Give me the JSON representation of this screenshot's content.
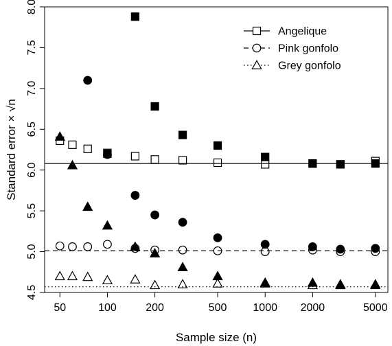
{
  "chart_data": {
    "type": "scatter",
    "xscale": "log",
    "xlabel": "Sample size (n)",
    "ylabel": "Standard error × √n",
    "xlim": [
      40,
      6000
    ],
    "ylim": [
      4.5,
      8.0
    ],
    "xticks": [
      50,
      100,
      200,
      500,
      1000,
      2000,
      5000
    ],
    "xtick_labels": [
      "50",
      "100",
      "200",
      "500",
      "1000",
      "2000",
      "5000"
    ],
    "yticks": [
      4.5,
      5.0,
      5.5,
      6.0,
      6.5,
      7.0,
      7.5,
      8.0
    ],
    "ytick_labels": [
      "4.5",
      "5.0",
      "5.5",
      "6.0",
      "6.5",
      "7.0",
      "7.5",
      "8.0"
    ],
    "legend_position": "top-right",
    "x": [
      50,
      60,
      75,
      100,
      150,
      200,
      300,
      500,
      1000,
      2000,
      3000,
      5000
    ],
    "series": [
      {
        "name": "Angelique",
        "marker": "square",
        "line_style": "solid",
        "reference_line": 6.08,
        "open_values": [
          6.36,
          6.31,
          6.26,
          6.21,
          6.17,
          6.13,
          6.12,
          6.09,
          6.07,
          6.08,
          6.07,
          6.11
        ],
        "filled_x": [
          100,
          150,
          200,
          300,
          500,
          1000,
          2000,
          3000,
          5000
        ],
        "filled_values": [
          6.2,
          7.88,
          6.78,
          6.43,
          6.3,
          6.16,
          6.08,
          6.07,
          6.08
        ]
      },
      {
        "name": "Pink gonfolo",
        "marker": "circle",
        "line_style": "dashed",
        "reference_line": 5.01,
        "open_values": [
          5.07,
          5.06,
          5.06,
          5.09,
          5.04,
          5.02,
          5.02,
          5.01,
          5.0,
          5.02,
          5.0,
          5.0
        ],
        "filled_x": [
          75,
          100,
          150,
          200,
          300,
          500,
          1000,
          2000,
          3000,
          5000
        ],
        "filled_values": [
          7.1,
          6.19,
          5.69,
          5.45,
          5.36,
          5.17,
          5.09,
          5.06,
          5.03,
          5.04
        ]
      },
      {
        "name": "Grey gonfolo",
        "marker": "triangle",
        "line_style": "dotted",
        "reference_line": 4.57,
        "open_values": [
          4.7,
          4.7,
          4.69,
          4.65,
          4.66,
          4.59,
          4.6,
          4.61,
          4.61,
          4.59,
          4.59,
          4.59
        ],
        "filled_x": [
          50,
          60,
          75,
          100,
          150,
          200,
          300,
          500,
          1000,
          2000,
          3000,
          5000
        ],
        "filled_values": [
          6.41,
          6.06,
          5.55,
          5.32,
          5.06,
          4.98,
          4.81,
          4.7,
          4.62,
          4.62,
          4.6,
          4.6
        ]
      }
    ]
  }
}
